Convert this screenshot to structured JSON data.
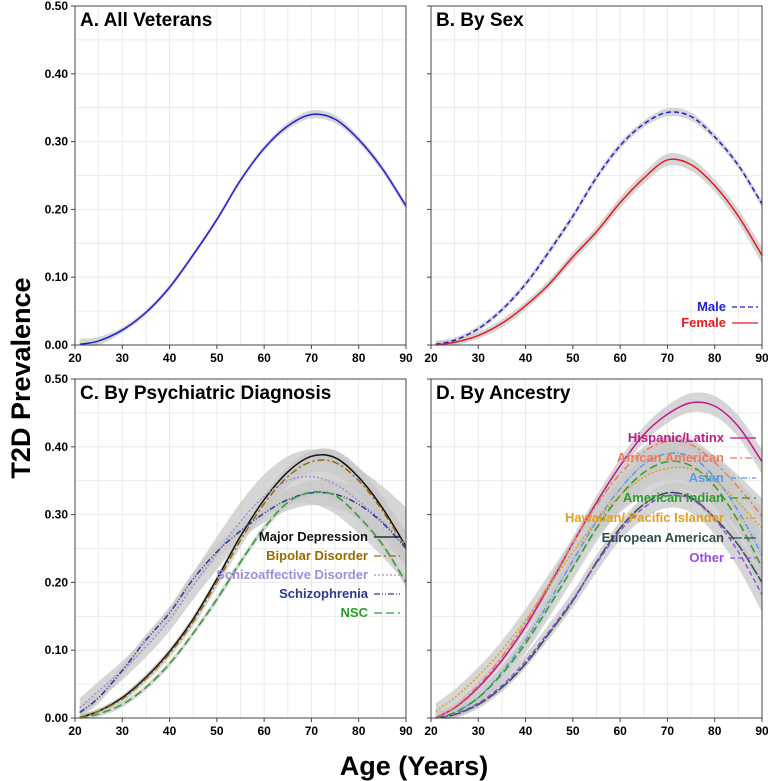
{
  "figure": {
    "ylabel": "T2D Prevalence",
    "xlabel": "Age (Years)"
  },
  "chart_data": [
    {
      "type": "line",
      "title": "A. All Veterans",
      "x_ticks": [
        20,
        30,
        40,
        50,
        60,
        70,
        80,
        90
      ],
      "y_tick_labels": [
        "0.00",
        "0.10",
        "0.20",
        "0.30",
        "0.40",
        "0.50"
      ],
      "xlim": [
        20,
        90
      ],
      "ylim": [
        0,
        0.5
      ],
      "x": [
        21,
        25,
        30,
        35,
        40,
        45,
        50,
        55,
        60,
        65,
        70,
        75,
        80,
        85,
        90
      ],
      "series": [
        {
          "name": "All Veterans",
          "color": "#1f1fd6",
          "dash": "",
          "values": [
            0.001,
            0.006,
            0.022,
            0.048,
            0.085,
            0.133,
            0.185,
            0.243,
            0.29,
            0.323,
            0.34,
            0.333,
            0.303,
            0.26,
            0.205
          ],
          "ci": [
            0.008,
            0.006,
            0.004,
            0.004,
            0.004,
            0.004,
            0.004,
            0.004,
            0.004,
            0.005,
            0.006,
            0.006,
            0.005,
            0.005,
            0.005
          ]
        }
      ],
      "legend": []
    },
    {
      "type": "line",
      "title": "B. By Sex",
      "x_ticks": [
        20,
        30,
        40,
        50,
        60,
        70,
        80,
        90
      ],
      "y_tick_labels": [],
      "xlim": [
        20,
        90
      ],
      "ylim": [
        0,
        0.5
      ],
      "x": [
        21,
        25,
        30,
        35,
        40,
        45,
        50,
        55,
        60,
        65,
        70,
        75,
        80,
        85,
        90
      ],
      "series": [
        {
          "name": "Male",
          "color": "#1f1fd6",
          "dash": "5,3",
          "values": [
            0.001,
            0.007,
            0.024,
            0.052,
            0.09,
            0.138,
            0.19,
            0.247,
            0.294,
            0.326,
            0.343,
            0.337,
            0.307,
            0.265,
            0.208
          ],
          "ci": [
            0.005,
            0.004,
            0.004,
            0.004,
            0.004,
            0.005,
            0.005,
            0.005,
            0.005,
            0.005,
            0.006,
            0.006,
            0.005,
            0.005,
            0.005
          ]
        },
        {
          "name": "Female",
          "color": "#e41a1c",
          "dash": "",
          "values": [
            0.0,
            0.004,
            0.014,
            0.032,
            0.058,
            0.09,
            0.13,
            0.167,
            0.21,
            0.246,
            0.273,
            0.266,
            0.235,
            0.19,
            0.132
          ],
          "ci": [
            0.006,
            0.005,
            0.005,
            0.006,
            0.006,
            0.006,
            0.007,
            0.007,
            0.008,
            0.008,
            0.009,
            0.009,
            0.009,
            0.01,
            0.012
          ]
        }
      ],
      "legend": [
        "Male",
        "Female"
      ]
    },
    {
      "type": "line",
      "title": "C. By Psychiatric Diagnosis",
      "x_ticks": [
        20,
        30,
        40,
        50,
        60,
        70,
        80,
        90
      ],
      "y_tick_labels": [
        "0.00",
        "0.10",
        "0.20",
        "0.30",
        "0.40",
        "0.50"
      ],
      "xlim": [
        20,
        90
      ],
      "ylim": [
        0,
        0.5
      ],
      "x": [
        21,
        25,
        30,
        35,
        40,
        45,
        50,
        55,
        60,
        65,
        70,
        75,
        80,
        85,
        90
      ],
      "series": [
        {
          "name": "Major Depression",
          "color": "#111111",
          "dash": "",
          "values": [
            0.001,
            0.01,
            0.03,
            0.06,
            0.098,
            0.146,
            0.205,
            0.268,
            0.322,
            0.363,
            0.386,
            0.384,
            0.355,
            0.31,
            0.253
          ],
          "ci": [
            0.004,
            0.004,
            0.004,
            0.005,
            0.005,
            0.005,
            0.005,
            0.006,
            0.006,
            0.007,
            0.008,
            0.01,
            0.012,
            0.014,
            0.016
          ]
        },
        {
          "name": "Bipolar Disorder",
          "color": "#9a6a00",
          "dash": "7,3,2,3",
          "values": [
            0.001,
            0.01,
            0.028,
            0.058,
            0.095,
            0.142,
            0.2,
            0.262,
            0.316,
            0.356,
            0.378,
            0.377,
            0.35,
            0.306,
            0.25
          ],
          "ci": [
            0.004,
            0.004,
            0.005,
            0.005,
            0.006,
            0.007,
            0.008,
            0.01,
            0.012,
            0.014,
            0.016,
            0.018,
            0.02,
            0.022,
            0.025
          ]
        },
        {
          "name": "Schizoaffective Disorder",
          "color": "#9c8fdc",
          "dash": "2,2",
          "values": [
            0.015,
            0.04,
            0.07,
            0.105,
            0.145,
            0.195,
            0.243,
            0.29,
            0.327,
            0.35,
            0.356,
            0.345,
            0.32,
            0.29,
            0.255
          ],
          "ci": [
            0.014,
            0.014,
            0.014,
            0.015,
            0.017,
            0.02,
            0.024,
            0.028,
            0.032,
            0.036,
            0.04,
            0.044,
            0.048,
            0.052,
            0.056
          ]
        },
        {
          "name": "Schizophrenia",
          "color": "#2b3a8c",
          "dash": "6,2,1,2,1,2",
          "values": [
            0.008,
            0.03,
            0.07,
            0.115,
            0.155,
            0.205,
            0.245,
            0.276,
            0.302,
            0.322,
            0.332,
            0.33,
            0.315,
            0.288,
            0.25
          ],
          "ci": [
            0.008,
            0.008,
            0.008,
            0.008,
            0.009,
            0.01,
            0.011,
            0.012,
            0.014,
            0.016,
            0.018,
            0.02,
            0.022,
            0.024,
            0.026
          ]
        },
        {
          "name": "NSC",
          "color": "#2a9d2a",
          "dash": "8,4",
          "values": [
            0.0,
            0.006,
            0.02,
            0.045,
            0.08,
            0.125,
            0.175,
            0.23,
            0.28,
            0.318,
            0.333,
            0.328,
            0.297,
            0.256,
            0.2
          ],
          "ci": [
            0.004,
            0.004,
            0.004,
            0.004,
            0.004,
            0.004,
            0.005,
            0.005,
            0.005,
            0.006,
            0.006,
            0.006,
            0.006,
            0.006,
            0.007
          ]
        }
      ],
      "legend": [
        "Major Depression",
        "Bipolar Disorder",
        "Schizoaffective Disorder",
        "Schizophrenia",
        "NSC"
      ]
    },
    {
      "type": "line",
      "title": "D. By Ancestry",
      "x_ticks": [
        20,
        30,
        40,
        50,
        60,
        70,
        80,
        90
      ],
      "y_tick_labels": [],
      "xlim": [
        20,
        90
      ],
      "ylim": [
        0,
        0.5
      ],
      "x": [
        21,
        25,
        30,
        35,
        40,
        45,
        50,
        55,
        60,
        65,
        70,
        75,
        80,
        85,
        90
      ],
      "series": [
        {
          "name": "Hispanic/Latinx",
          "color": "#c2188b",
          "dash": "",
          "values": [
            0.001,
            0.015,
            0.045,
            0.085,
            0.135,
            0.195,
            0.258,
            0.318,
            0.372,
            0.418,
            0.448,
            0.465,
            0.46,
            0.43,
            0.378
          ],
          "ci": [
            0.006,
            0.006,
            0.006,
            0.006,
            0.007,
            0.008,
            0.009,
            0.01,
            0.011,
            0.012,
            0.013,
            0.014,
            0.015,
            0.016,
            0.018
          ]
        },
        {
          "name": "African American",
          "color": "#f07a5a",
          "dash": "7,3,2,3",
          "values": [
            0.001,
            0.016,
            0.048,
            0.09,
            0.14,
            0.198,
            0.258,
            0.314,
            0.36,
            0.393,
            0.408,
            0.403,
            0.377,
            0.34,
            0.298
          ],
          "ci": [
            0.005,
            0.005,
            0.005,
            0.005,
            0.005,
            0.005,
            0.006,
            0.006,
            0.006,
            0.007,
            0.007,
            0.008,
            0.009,
            0.01,
            0.012
          ]
        },
        {
          "name": "Asian",
          "color": "#5b9be6",
          "dash": "6,2,1,2",
          "values": [
            0.0,
            0.008,
            0.03,
            0.068,
            0.115,
            0.172,
            0.232,
            0.29,
            0.338,
            0.374,
            0.39,
            0.385,
            0.355,
            0.305,
            0.24
          ],
          "ci": [
            0.008,
            0.008,
            0.009,
            0.01,
            0.011,
            0.012,
            0.014,
            0.016,
            0.018,
            0.02,
            0.022,
            0.024,
            0.026,
            0.028,
            0.032
          ]
        },
        {
          "name": "American Indian",
          "color": "#2a9d2a",
          "dash": "8,4",
          "values": [
            0.0,
            0.008,
            0.03,
            0.065,
            0.11,
            0.165,
            0.222,
            0.28,
            0.328,
            0.362,
            0.378,
            0.372,
            0.342,
            0.29,
            0.222
          ],
          "ci": [
            0.01,
            0.01,
            0.011,
            0.012,
            0.014,
            0.016,
            0.018,
            0.02,
            0.022,
            0.024,
            0.026,
            0.028,
            0.03,
            0.033,
            0.036
          ]
        },
        {
          "name": "Hawaiian/ Pacific Islander",
          "color": "#e0a020",
          "dash": "2,2",
          "values": [
            0.01,
            0.03,
            0.062,
            0.1,
            0.145,
            0.195,
            0.245,
            0.29,
            0.328,
            0.355,
            0.368,
            0.368,
            0.35,
            0.318,
            0.28
          ],
          "ci": [
            0.012,
            0.012,
            0.013,
            0.014,
            0.016,
            0.018,
            0.02,
            0.022,
            0.025,
            0.028,
            0.031,
            0.034,
            0.037,
            0.04,
            0.044
          ]
        },
        {
          "name": "European American",
          "color": "#2f4f4f",
          "dash": "12,2",
          "values": [
            0.0,
            0.005,
            0.02,
            0.045,
            0.08,
            0.125,
            0.173,
            0.23,
            0.28,
            0.315,
            0.332,
            0.325,
            0.295,
            0.255,
            0.2
          ],
          "ci": [
            0.004,
            0.004,
            0.004,
            0.004,
            0.004,
            0.004,
            0.004,
            0.004,
            0.004,
            0.005,
            0.005,
            0.005,
            0.005,
            0.005,
            0.006
          ]
        },
        {
          "name": "Other",
          "color": "#9b4de0",
          "dash": "5,3",
          "values": [
            0.0,
            0.006,
            0.022,
            0.048,
            0.084,
            0.128,
            0.175,
            0.228,
            0.276,
            0.31,
            0.328,
            0.323,
            0.293,
            0.245,
            0.182
          ],
          "ci": [
            0.008,
            0.008,
            0.008,
            0.009,
            0.01,
            0.011,
            0.012,
            0.013,
            0.014,
            0.016,
            0.018,
            0.02,
            0.022,
            0.024,
            0.026
          ]
        }
      ],
      "legend": [
        "Hispanic/Latinx",
        "African American",
        "Asian",
        "American Indian",
        "Hawaiian/ Pacific Islander",
        "European American",
        "Other"
      ]
    }
  ]
}
